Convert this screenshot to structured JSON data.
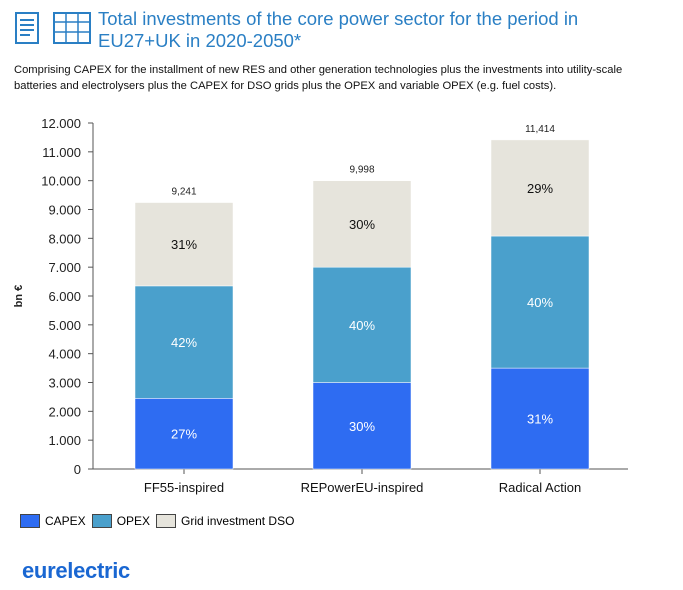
{
  "header": {
    "title": "Total investments of the core power sector for the period in EU27+UK in 2020-2050*",
    "subtitle": "Comprising CAPEX for the installment of new RES and other generation technologies plus the investments into utility-scale batteries and electrolysers plus the CAPEX for DSO grids plus the OPEX and variable OPEX (e.g. fuel costs).",
    "icons": [
      "document-icon",
      "data-table-icon"
    ]
  },
  "chart_data": {
    "type": "bar",
    "stacked": true,
    "categories": [
      "FF55-inspired",
      "REPowerEU-inspired",
      "Radical Action"
    ],
    "totals": [
      9241,
      9998,
      11414
    ],
    "total_labels": [
      "9,241",
      "9,998",
      "11,414"
    ],
    "series": [
      {
        "name": "CAPEX",
        "color": "#2e6cf2",
        "values": [
          2450,
          3000,
          3500
        ],
        "labels": [
          "27%",
          "30%",
          "31%"
        ]
      },
      {
        "name": "OPEX",
        "color": "#4aa0cc",
        "values": [
          3900,
          4000,
          4580
        ],
        "labels": [
          "42%",
          "40%",
          "40%"
        ]
      },
      {
        "name": "Grid investment DSO",
        "color": "#e6e4dc",
        "values": [
          2891,
          2998,
          3334
        ],
        "labels": [
          "31%",
          "30%",
          "29%"
        ]
      }
    ],
    "ylabel": "bn €",
    "ylim": [
      0,
      12000
    ],
    "yticks": [
      0,
      1000,
      2000,
      3000,
      4000,
      5000,
      6000,
      7000,
      8000,
      9000,
      10000,
      11000,
      12000
    ],
    "ytick_labels": [
      "0",
      "1.000",
      "2.000",
      "3.000",
      "4.000",
      "5.000",
      "6.000",
      "7.000",
      "8.000",
      "9.000",
      "10.000",
      "11.000",
      "12.000"
    ],
    "grid": false,
    "legend_position": "bottom-left"
  },
  "footer": {
    "logo_text": "eurelectric"
  }
}
